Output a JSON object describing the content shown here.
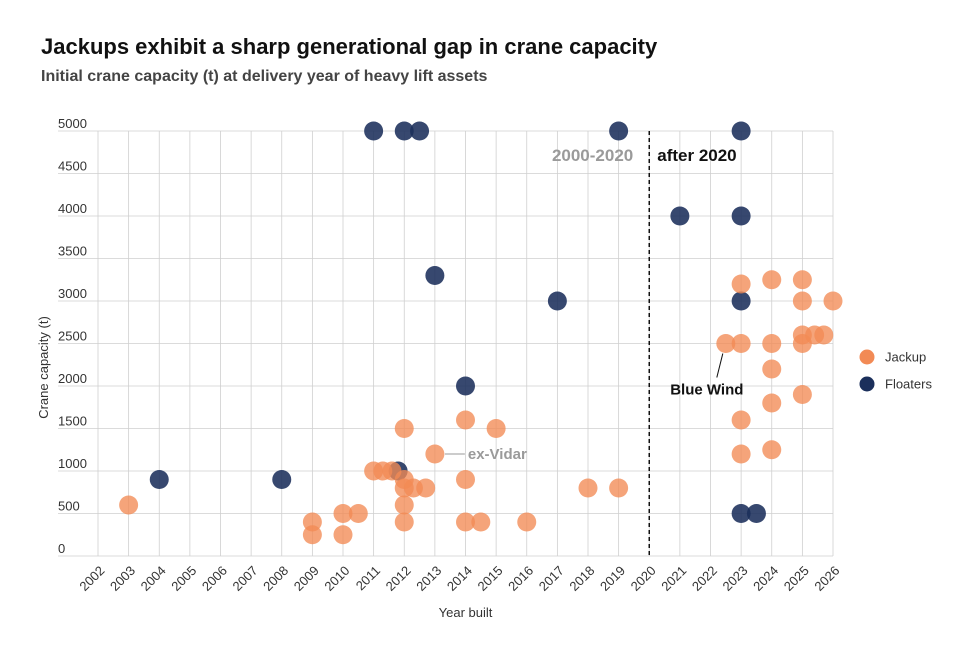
{
  "title": "Jackups exhibit a sharp generational gap in crane capacity",
  "subtitle": "Initial crane capacity (t) at delivery year of heavy lift assets",
  "chart_data": {
    "type": "scatter",
    "xlabel": "Year built",
    "ylabel": "Crane capacity (t)",
    "xlim": [
      2002,
      2026
    ],
    "ylim": [
      0,
      5000
    ],
    "x_ticks": [
      "2002",
      "2003",
      "2004",
      "2005",
      "2006",
      "2007",
      "2008",
      "2009",
      "2010",
      "2011",
      "2012",
      "2013",
      "2014",
      "2015",
      "2016",
      "2017",
      "2018",
      "2019",
      "2020",
      "2021",
      "2022",
      "2023",
      "2024",
      "2025",
      "2026"
    ],
    "y_ticks": [
      "5000",
      "4500",
      "4000",
      "3500",
      "3000",
      "2500",
      "2000",
      "1500",
      "1000",
      "500",
      "0"
    ],
    "grid": true,
    "legend_position": "right",
    "divider_x": 2020,
    "period_labels": {
      "before": "2000-2020",
      "after": "after 2020"
    },
    "annotations": [
      {
        "text": "ex-Vidar",
        "x": 2013,
        "y": 1200
      },
      {
        "text": "Blue Wind",
        "x": 2022.5,
        "y": 2500
      }
    ],
    "series": [
      {
        "name": "Jackup",
        "color": "#f28a55",
        "points": [
          [
            2003,
            600
          ],
          [
            2009,
            400
          ],
          [
            2009,
            250
          ],
          [
            2010,
            500
          ],
          [
            2010.5,
            500
          ],
          [
            2010,
            250
          ],
          [
            2011,
            1000
          ],
          [
            2011.3,
            1000
          ],
          [
            2011.6,
            1000
          ],
          [
            2012,
            900
          ],
          [
            2012,
            800
          ],
          [
            2012.3,
            800
          ],
          [
            2012.7,
            800
          ],
          [
            2012,
            600
          ],
          [
            2012,
            400
          ],
          [
            2012,
            1500
          ],
          [
            2013,
            1200
          ],
          [
            2014,
            1600
          ],
          [
            2014,
            900
          ],
          [
            2014,
            400
          ],
          [
            2014.5,
            400
          ],
          [
            2015,
            1500
          ],
          [
            2016,
            400
          ],
          [
            2018,
            800
          ],
          [
            2019,
            800
          ],
          [
            2022.5,
            2500
          ],
          [
            2023,
            3200
          ],
          [
            2023,
            2500
          ],
          [
            2023,
            1600
          ],
          [
            2023,
            1200
          ],
          [
            2024,
            3250
          ],
          [
            2024,
            2500
          ],
          [
            2024,
            2200
          ],
          [
            2024,
            1800
          ],
          [
            2024,
            1250
          ],
          [
            2025,
            3250
          ],
          [
            2025,
            3000
          ],
          [
            2025,
            2600
          ],
          [
            2025,
            2500
          ],
          [
            2025,
            1900
          ],
          [
            2025.4,
            2600
          ],
          [
            2025.7,
            2600
          ],
          [
            2026,
            3000
          ]
        ]
      },
      {
        "name": "Floaters",
        "color": "#1b2f5b",
        "points": [
          [
            2004,
            900
          ],
          [
            2008,
            900
          ],
          [
            2011,
            5000
          ],
          [
            2012,
            5000
          ],
          [
            2012.5,
            5000
          ],
          [
            2011.8,
            1000
          ],
          [
            2013,
            3300
          ],
          [
            2014,
            2000
          ],
          [
            2017,
            3000
          ],
          [
            2019,
            5000
          ],
          [
            2021,
            4000
          ],
          [
            2023,
            5000
          ],
          [
            2023,
            4000
          ],
          [
            2023,
            3000
          ],
          [
            2023,
            500
          ],
          [
            2023.5,
            500
          ]
        ]
      }
    ]
  }
}
